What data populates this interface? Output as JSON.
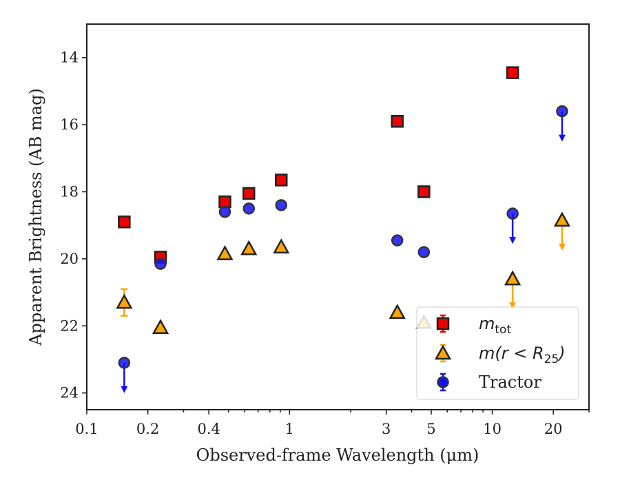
{
  "chart_data": {
    "type": "scatter",
    "title": "",
    "xlabel": "Observed-frame Wavelength (μm)",
    "ylabel": "Apparent Brightness (AB mag)",
    "xscale": "log",
    "xlim": [
      0.1,
      30
    ],
    "ylim": [
      24.5,
      13.0
    ],
    "y_inverted": true,
    "x_ticks": [
      {
        "value": 0.1,
        "label": "0.1"
      },
      {
        "value": 0.2,
        "label": "0.2"
      },
      {
        "value": 0.4,
        "label": "0.4"
      },
      {
        "value": 1,
        "label": "1"
      },
      {
        "value": 3,
        "label": "3"
      },
      {
        "value": 5,
        "label": "5"
      },
      {
        "value": 10,
        "label": "10"
      },
      {
        "value": 20,
        "label": "20"
      }
    ],
    "x_minor_ticks": [
      0.3,
      0.5,
      0.6,
      0.7,
      0.8,
      0.9,
      2,
      4,
      6,
      7,
      8,
      9,
      30
    ],
    "y_ticks": [
      {
        "value": 14,
        "label": "14"
      },
      {
        "value": 16,
        "label": "16"
      },
      {
        "value": 18,
        "label": "18"
      },
      {
        "value": 20,
        "label": "20"
      },
      {
        "value": 22,
        "label": "22"
      },
      {
        "value": 24,
        "label": "24"
      }
    ],
    "legend": {
      "position": "lower-right",
      "entries": [
        {
          "series": "m_tot",
          "label_main": "m",
          "label_sub": "tot"
        },
        {
          "series": "m_r25",
          "label_main": "m(r < R",
          "label_sub": "25",
          "label_tail": ")"
        },
        {
          "series": "tractor",
          "label_main": "Tractor"
        }
      ]
    },
    "series": [
      {
        "id": "m_tot",
        "marker": "square",
        "color": "#ee0000",
        "edge_color": "#222222",
        "points": [
          {
            "x": 0.153,
            "y": 18.9
          },
          {
            "x": 0.231,
            "y": 19.95
          },
          {
            "x": 0.48,
            "y": 18.3
          },
          {
            "x": 0.63,
            "y": 18.05
          },
          {
            "x": 0.91,
            "y": 17.65
          },
          {
            "x": 3.4,
            "y": 15.9
          },
          {
            "x": 4.6,
            "y": 18.0
          },
          {
            "x": 12.6,
            "y": 14.45
          }
        ]
      },
      {
        "id": "m_r25",
        "marker": "triangle",
        "color": "#ffa500",
        "edge_color": "#222222",
        "points": [
          {
            "x": 0.153,
            "y": 21.3,
            "err": 0.4
          },
          {
            "x": 0.231,
            "y": 22.05
          },
          {
            "x": 0.48,
            "y": 19.85
          },
          {
            "x": 0.63,
            "y": 19.7
          },
          {
            "x": 0.91,
            "y": 19.65
          },
          {
            "x": 3.4,
            "y": 21.6
          },
          {
            "x": 4.6,
            "y": 21.9
          },
          {
            "x": 12.6,
            "y": 20.6,
            "upper_limit": true
          },
          {
            "x": 22.1,
            "y": 18.85,
            "upper_limit": true
          }
        ]
      },
      {
        "id": "tractor",
        "marker": "circle",
        "color": "#1010ff",
        "edge_color": "#333333",
        "points": [
          {
            "x": 0.153,
            "y": 23.1,
            "upper_limit": true
          },
          {
            "x": 0.231,
            "y": 20.15
          },
          {
            "x": 0.48,
            "y": 18.6
          },
          {
            "x": 0.63,
            "y": 18.5
          },
          {
            "x": 0.91,
            "y": 18.4
          },
          {
            "x": 3.4,
            "y": 19.45
          },
          {
            "x": 4.6,
            "y": 19.8
          },
          {
            "x": 12.6,
            "y": 18.65,
            "upper_limit": true
          },
          {
            "x": 22.1,
            "y": 15.6,
            "upper_limit": true
          }
        ]
      }
    ]
  }
}
